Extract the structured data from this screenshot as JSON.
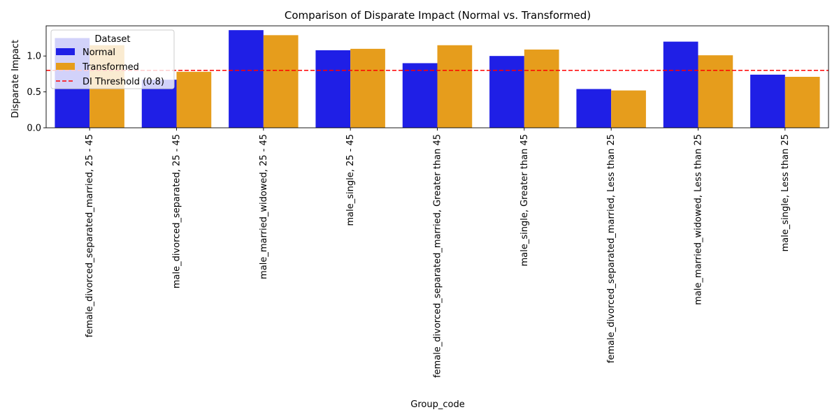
{
  "chart_data": {
    "type": "bar",
    "title": "Comparison of Disparate Impact (Normal vs. Transformed)",
    "xlabel": "Group_code",
    "ylabel": "Disparate Impact",
    "ylim": [
      0,
      1.42
    ],
    "yticks": [
      "0.0",
      "0.5",
      "1.0"
    ],
    "categories": [
      "female_divorced_separated_married, 25 - 45",
      "male_divorced_separated, 25 - 45",
      "male_married_widowed, 25 - 45",
      "male_single, 25 - 45",
      "female_divorced_separated_married, Greater than 45",
      "male_single, Greater than 45",
      "female_divorced_separated_married, Less than 25",
      "male_married_widowed, Less than 25",
      "male_single, Less than 25"
    ],
    "series": [
      {
        "name": "Normal",
        "color": "#1f1fe6",
        "values": [
          1.25,
          0.67,
          1.36,
          1.08,
          0.9,
          1.0,
          0.54,
          1.2,
          0.74
        ]
      },
      {
        "name": "Transformed",
        "color": "#e69d1c",
        "values": [
          1.15,
          0.78,
          1.29,
          1.1,
          1.15,
          1.09,
          0.52,
          1.01,
          0.71
        ]
      }
    ],
    "threshold": {
      "label": "DI Threshold (0.8)",
      "value": 0.8,
      "color": "#ff0000"
    },
    "legend": {
      "title": "Dataset",
      "placement": "top-left"
    },
    "grid": false
  }
}
